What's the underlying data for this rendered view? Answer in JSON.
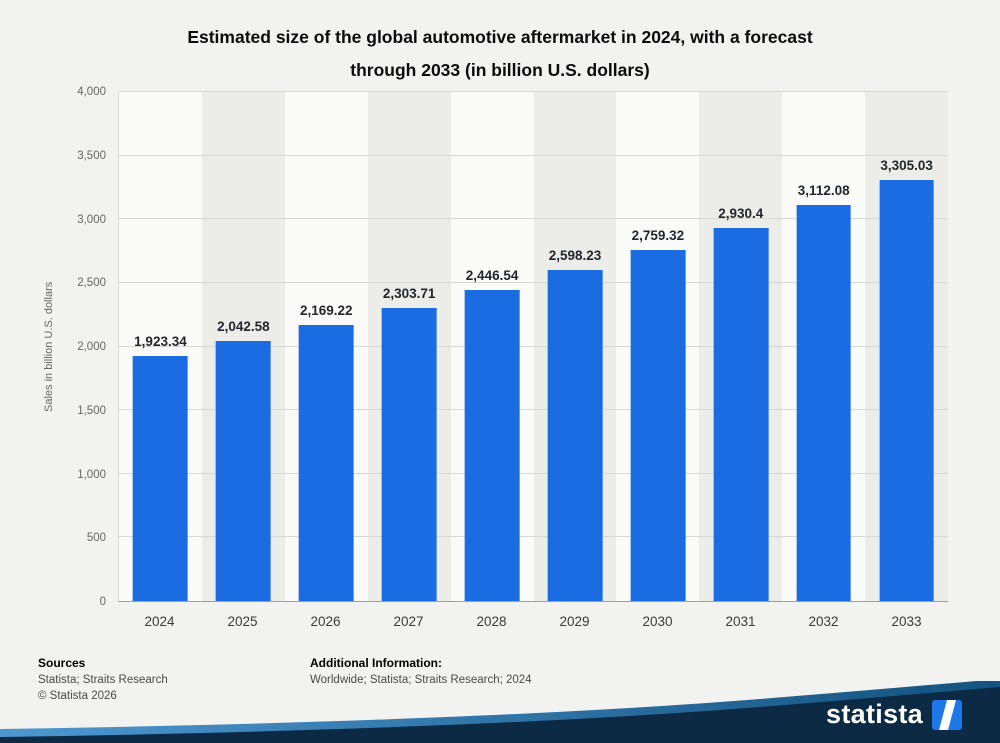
{
  "title": {
    "line1": "Estimated size of the global automotive aftermarket in 2024, with a forecast",
    "line2": "through 2033 (in billion U.S. dollars)"
  },
  "chart_data": {
    "type": "bar",
    "title": "Estimated size of the global automotive aftermarket in 2024, with a forecast through 2033 (in billion U.S. dollars)",
    "categories": [
      "2024",
      "2025",
      "2026",
      "2027",
      "2028",
      "2029",
      "2030",
      "2031",
      "2032",
      "2033"
    ],
    "values": [
      1923.34,
      2042.58,
      2169.22,
      2303.71,
      2446.54,
      2598.23,
      2759.32,
      2930.4,
      3112.08,
      3305.03
    ],
    "value_labels": [
      "1,923.34",
      "2,042.58",
      "2,169.22",
      "2,303.71",
      "2,446.54",
      "2,598.23",
      "2,759.32",
      "2,930.4",
      "3,112.08",
      "3,305.03"
    ],
    "xlabel": "",
    "ylabel": "Sales in billion U.S. dollars",
    "ylim": [
      0,
      4000
    ],
    "yticks": [
      0,
      500,
      1000,
      1500,
      2000,
      2500,
      3000,
      3500,
      4000
    ],
    "ytick_labels": [
      "0",
      "500",
      "1,000",
      "1,500",
      "2,000",
      "2,500",
      "3,000",
      "3,500",
      "4,000"
    ],
    "grid": "horizontal",
    "legend": "none",
    "bar_color": "#1a6ce0"
  },
  "footer": {
    "sources_heading": "Sources",
    "sources_text": "Statista; Straits Research",
    "copyright": "© Statista 2026",
    "additional_heading": "Additional Information:",
    "additional_text": "Worldwide; Statista; Straits Research; 2024"
  },
  "branding": {
    "logo_text": "statista"
  },
  "colors": {
    "bar": "#1a6ce0",
    "banner_dark": "#0c2a44",
    "accent_light": "#4e97cf",
    "accent_dark": "#14527f",
    "logo_square": "#1e78e8"
  }
}
